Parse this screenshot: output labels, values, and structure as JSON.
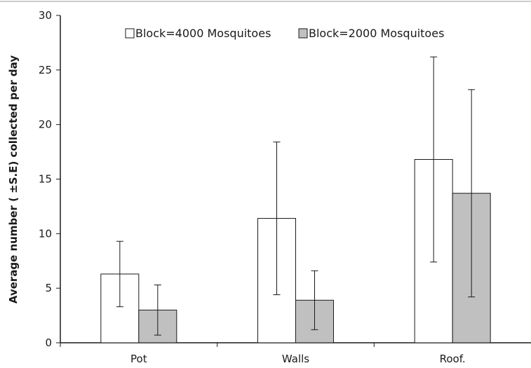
{
  "chart_data": {
    "type": "bar",
    "title": "",
    "xlabel": "",
    "ylabel": "Average number ( ±S.E) collected per day",
    "ylim": [
      0,
      30
    ],
    "yticks": [
      0,
      5,
      10,
      15,
      20,
      25,
      30
    ],
    "grid": false,
    "legend_position": "top-center",
    "categories": [
      "Pot",
      "Walls",
      "Roof."
    ],
    "series": [
      {
        "name": "Block=4000 Mosquitoes",
        "values": [
          6.3,
          11.4,
          16.8
        ],
        "error": [
          3.0,
          7.0,
          9.4
        ],
        "color": "#ffffff"
      },
      {
        "name": "Block=2000 Mosquitoes",
        "values": [
          3.0,
          3.9,
          13.7
        ],
        "error": [
          2.3,
          2.7,
          9.5
        ],
        "color": "#c0c0c0"
      }
    ]
  }
}
